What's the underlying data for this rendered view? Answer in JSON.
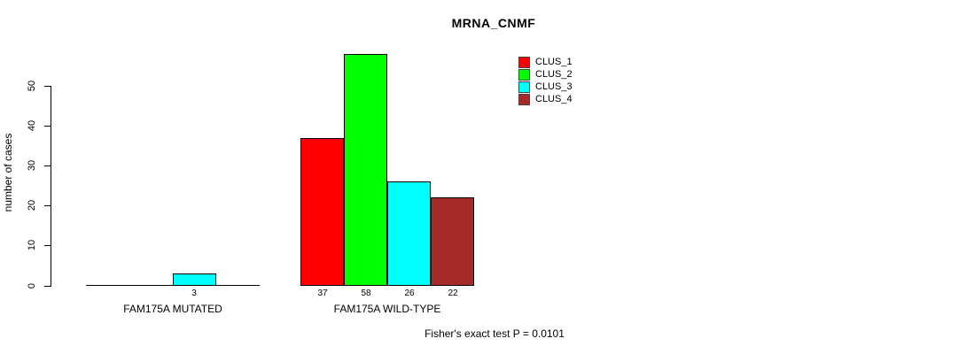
{
  "chart_data": {
    "type": "bar",
    "title": "MRNA_CNMF",
    "ylabel": "number of cases",
    "xlabel": "",
    "categories": [
      "FAM175A MUTATED",
      "FAM175A WILD-TYPE"
    ],
    "series": [
      {
        "name": "CLUS_1",
        "color": "#ff0000",
        "values": [
          0,
          37
        ]
      },
      {
        "name": "CLUS_2",
        "color": "#00ff00",
        "values": [
          0,
          58
        ]
      },
      {
        "name": "CLUS_3",
        "color": "#00ffff",
        "values": [
          3,
          26
        ]
      },
      {
        "name": "CLUS_4",
        "color": "#a52a2a",
        "values": [
          0,
          22
        ]
      }
    ],
    "yticks": [
      0,
      10,
      20,
      30,
      40,
      50
    ],
    "ylim": [
      0,
      58
    ],
    "grid": false,
    "legend_position": "top-right",
    "value_labels": "shown under each bar when value > 0",
    "annotation": "Fisher's exact test P = 0.0101"
  }
}
